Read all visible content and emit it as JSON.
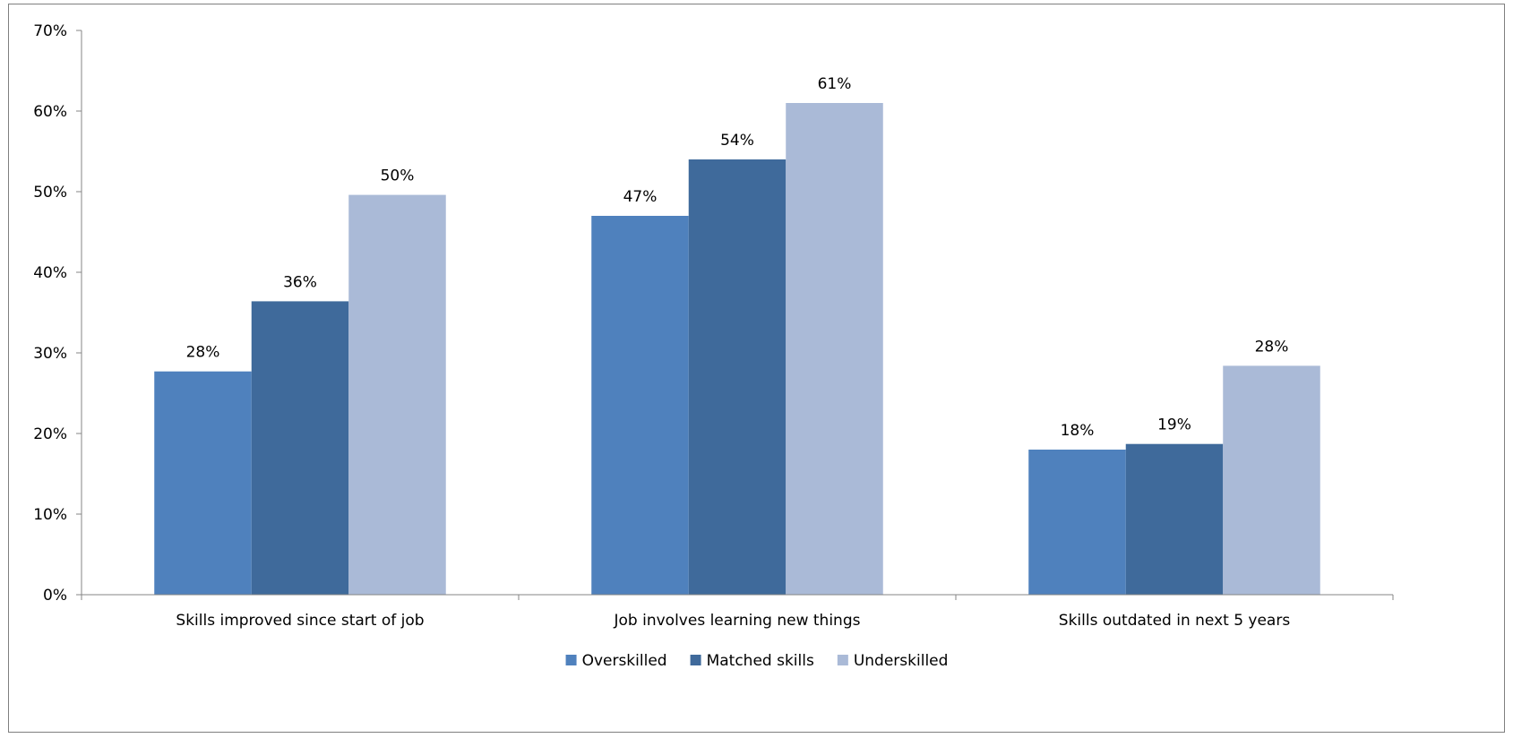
{
  "chart_data": {
    "type": "bar",
    "title": "",
    "xlabel": "",
    "ylabel": "",
    "ylim": [
      0,
      70
    ],
    "yticks": [
      0,
      10,
      20,
      30,
      40,
      50,
      60,
      70
    ],
    "ytick_labels": [
      "0%",
      "10%",
      "20%",
      "30%",
      "40%",
      "50%",
      "60%",
      "70%"
    ],
    "grid": false,
    "legend_position": "bottom",
    "categories": [
      "Skills improved since start of job",
      "Job involves learning new things",
      "Skills outdated in next 5 years"
    ],
    "series": [
      {
        "name": "Overskilled",
        "color": "#4F81BD",
        "values": [
          27.7,
          47.0,
          18.0
        ],
        "labels": [
          "28%",
          "47%",
          "18%"
        ]
      },
      {
        "name": "Matched skills",
        "color": "#3F6A9B",
        "values": [
          36.4,
          54.0,
          18.7
        ],
        "labels": [
          "36%",
          "54%",
          "19%"
        ]
      },
      {
        "name": "Underskilled",
        "color": "#AABAD7",
        "values": [
          49.6,
          61.0,
          28.4
        ],
        "labels": [
          "50%",
          "61%",
          "28%"
        ]
      }
    ]
  }
}
